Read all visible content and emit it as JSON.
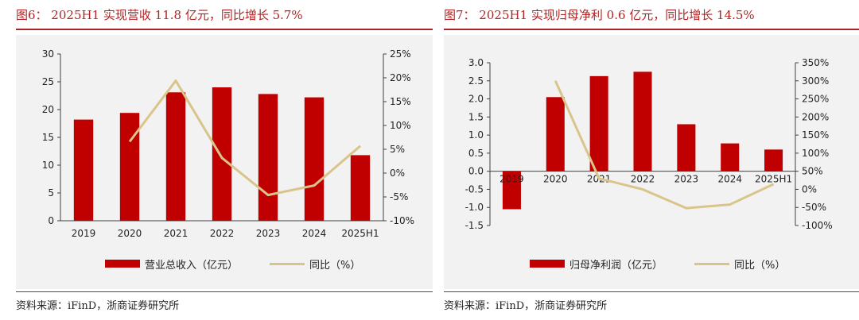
{
  "colors": {
    "bar": "#c00000",
    "line": "#d9c48a",
    "title": "#b22222",
    "axis": "#404040"
  },
  "charts": {
    "left": {
      "title": "图6： 2025H1 实现营收 11.8 亿元，同比增长 5.7%",
      "source": "资料来源：iFinD，浙商证券研究所"
    },
    "right": {
      "title": "图7： 2025H1 实现归母净利 0.6 亿元，同比增长 14.5%",
      "source": "资料来源：iFinD，浙商证券研究所"
    }
  },
  "chart_data": [
    {
      "type": "bar",
      "title": "图6： 2025H1 实现营收 11.8 亿元，同比增长 5.7%",
      "categories": [
        "2019",
        "2020",
        "2021",
        "2022",
        "2023",
        "2024",
        "2025H1"
      ],
      "series": [
        {
          "name": "营业总收入（亿元）",
          "type": "bar",
          "axis": "left",
          "values": [
            18.2,
            19.4,
            23.1,
            24.0,
            22.8,
            22.2,
            11.8
          ]
        },
        {
          "name": "同比（%）",
          "type": "line",
          "axis": "right",
          "values": [
            null,
            6.6,
            19.4,
            3.2,
            -4.6,
            -2.6,
            5.7
          ]
        }
      ],
      "ylim": [
        0,
        30
      ],
      "yticks": [
        "0",
        "5",
        "10",
        "15",
        "20",
        "25",
        "30"
      ],
      "y2lim": [
        -10,
        25
      ],
      "y2ticks": [
        "-10%",
        "-5%",
        "0%",
        "5%",
        "10%",
        "15%",
        "20%",
        "25%"
      ],
      "legend": "bottom",
      "grid": false
    },
    {
      "type": "bar",
      "title": "图7： 2025H1 实现归母净利 0.6 亿元，同比增长 14.5%",
      "categories": [
        "2019",
        "2020",
        "2021",
        "2022",
        "2023",
        "2024",
        "2025H1"
      ],
      "series": [
        {
          "name": "归母净利润（亿元）",
          "type": "bar",
          "axis": "left",
          "values": [
            -1.05,
            2.05,
            2.63,
            2.75,
            1.3,
            0.77,
            0.6
          ]
        },
        {
          "name": "同比（%）",
          "type": "line",
          "axis": "right",
          "values": [
            null,
            300,
            30,
            0,
            -52,
            -42,
            14.5
          ]
        }
      ],
      "ylim": [
        -1.5,
        3.0
      ],
      "yticks": [
        "-1.5",
        "-1.0",
        "-0.5",
        "0.0",
        "0.5",
        "1.0",
        "1.5",
        "2.0",
        "2.5",
        "3.0"
      ],
      "y2lim": [
        -100,
        350
      ],
      "y2ticks": [
        "-100%",
        "-50%",
        "0%",
        "50%",
        "100%",
        "150%",
        "200%",
        "250%",
        "300%",
        "350%"
      ],
      "legend": "bottom",
      "grid": false
    }
  ]
}
